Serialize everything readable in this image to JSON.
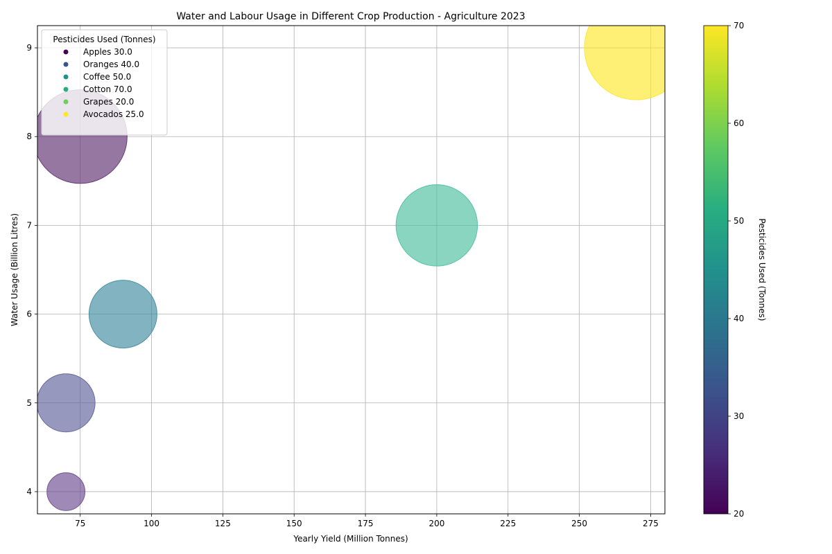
{
  "chart_data": {
    "type": "scatter",
    "title": "Water and Labour Usage in Different Crop Production - Agriculture 2023",
    "xlabel": "Yearly Yield (Million Tonnes)",
    "ylabel": "Water Usage (Billion Litres)",
    "xlim": [
      60,
      280
    ],
    "ylim": [
      3.75,
      9.25
    ],
    "xticks": [
      75,
      100,
      125,
      150,
      175,
      200,
      225,
      250,
      275
    ],
    "yticks": [
      4,
      5,
      6,
      7,
      8,
      9
    ],
    "grid": true,
    "bubble_size_scale": [
      20,
      150
    ],
    "points": [
      {
        "crop": "Apples",
        "x": 70,
        "y": 4,
        "pesticides": 30,
        "size_value": 20,
        "color": "#6b4a8f"
      },
      {
        "crop": "Oranges",
        "x": 70,
        "y": 5,
        "pesticides": 40,
        "size_value": 47,
        "color": "#5f6199"
      },
      {
        "crop": "Coffee",
        "x": 90,
        "y": 6,
        "pesticides": 50,
        "size_value": 64,
        "color": "#3f8a9e"
      },
      {
        "crop": "Cotton",
        "x": 200,
        "y": 7,
        "pesticides": 70,
        "size_value": 92,
        "color": "#4cbf9e"
      },
      {
        "crop": "Grapes",
        "x": 75,
        "y": 8,
        "pesticides": 20,
        "size_value": 122,
        "color": "#5e2e6f"
      },
      {
        "crop": "Avocados",
        "x": 270,
        "y": 9,
        "pesticides": 25,
        "size_value": 150,
        "color": "#fde62b"
      }
    ],
    "legend": {
      "title": "Pesticides Used (Tonnes)",
      "location": "upper-left",
      "entries": [
        {
          "label": "Apples 30.0",
          "color": "#440154"
        },
        {
          "label": "Oranges 40.0",
          "color": "#3b528b"
        },
        {
          "label": "Coffee 50.0",
          "color": "#21918c"
        },
        {
          "label": "Cotton 70.0",
          "color": "#27ad81"
        },
        {
          "label": "Grapes 20.0",
          "color": "#6ece58"
        },
        {
          "label": "Avocados 25.0",
          "color": "#fde725"
        }
      ]
    },
    "colorbar": {
      "label": "Pesticides Used (Tonnes)",
      "range": [
        20,
        70
      ],
      "ticks": [
        20,
        30,
        40,
        50,
        60,
        70
      ],
      "colormap": "viridis"
    }
  }
}
